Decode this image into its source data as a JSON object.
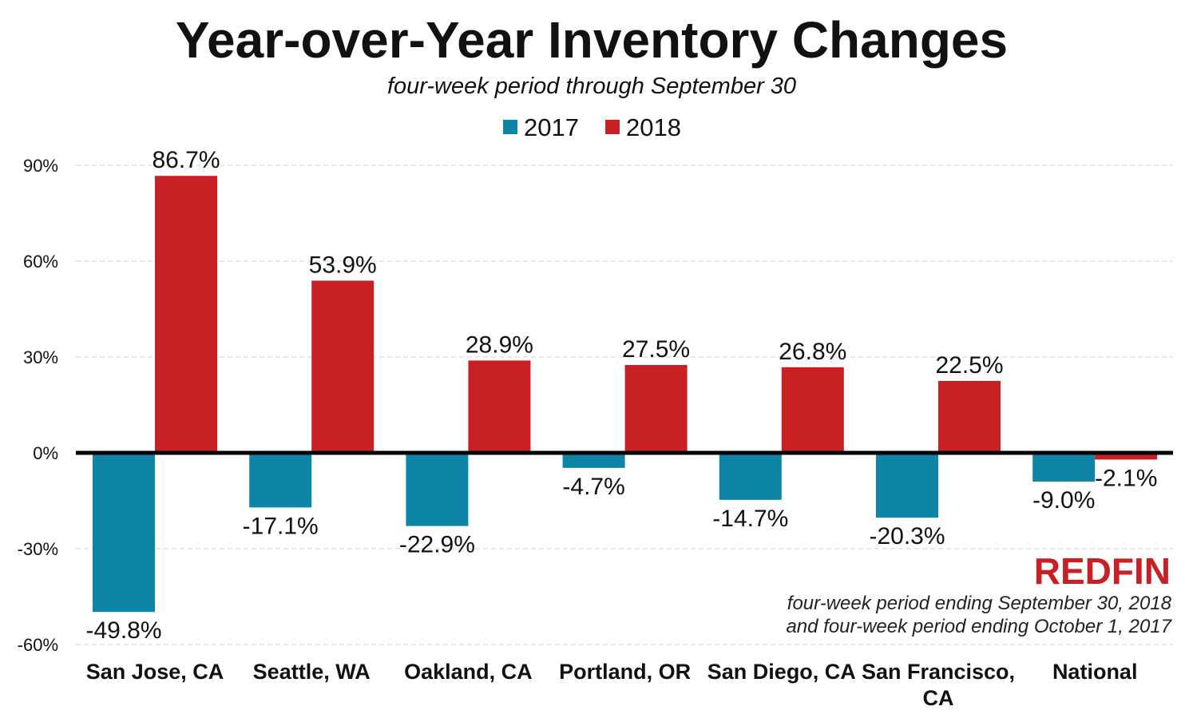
{
  "chart_data": {
    "type": "bar",
    "title": "Year-over-Year Inventory Changes",
    "subtitle": "four-week period through September 30",
    "categories": [
      "San Jose, CA",
      "Seattle, WA",
      "Oakland, CA",
      "Portland, OR",
      "San Diego, CA",
      "San Francisco, CA",
      "National"
    ],
    "series": [
      {
        "name": "2017",
        "color": "#0e84a6",
        "values": [
          -49.8,
          -17.1,
          -22.9,
          -4.7,
          -14.7,
          -20.3,
          -9.0
        ],
        "labels": [
          "-49.8%",
          "-17.1%",
          "-22.9%",
          "-4.7%",
          "-14.7%",
          "-20.3%",
          "-9.0%"
        ]
      },
      {
        "name": "2018",
        "color": "#c82024",
        "values": [
          86.7,
          53.9,
          28.9,
          27.5,
          26.8,
          22.5,
          -2.1
        ],
        "labels": [
          "86.7%",
          "53.9%",
          "28.9%",
          "27.5%",
          "26.8%",
          "22.5%",
          "-2.1%"
        ]
      }
    ],
    "yticks": [
      "90%",
      "60%",
      "30%",
      "0%",
      "-30%",
      "-60%"
    ],
    "ylim": [
      -60,
      90
    ],
    "grid": true,
    "legend": "top-center"
  },
  "branding": {
    "logo": "REDFIN",
    "logo_color": "#c82024",
    "note_line1": "four-week period ending September 30, 2018",
    "note_line2": "and four-week period ending October 1, 2017"
  }
}
